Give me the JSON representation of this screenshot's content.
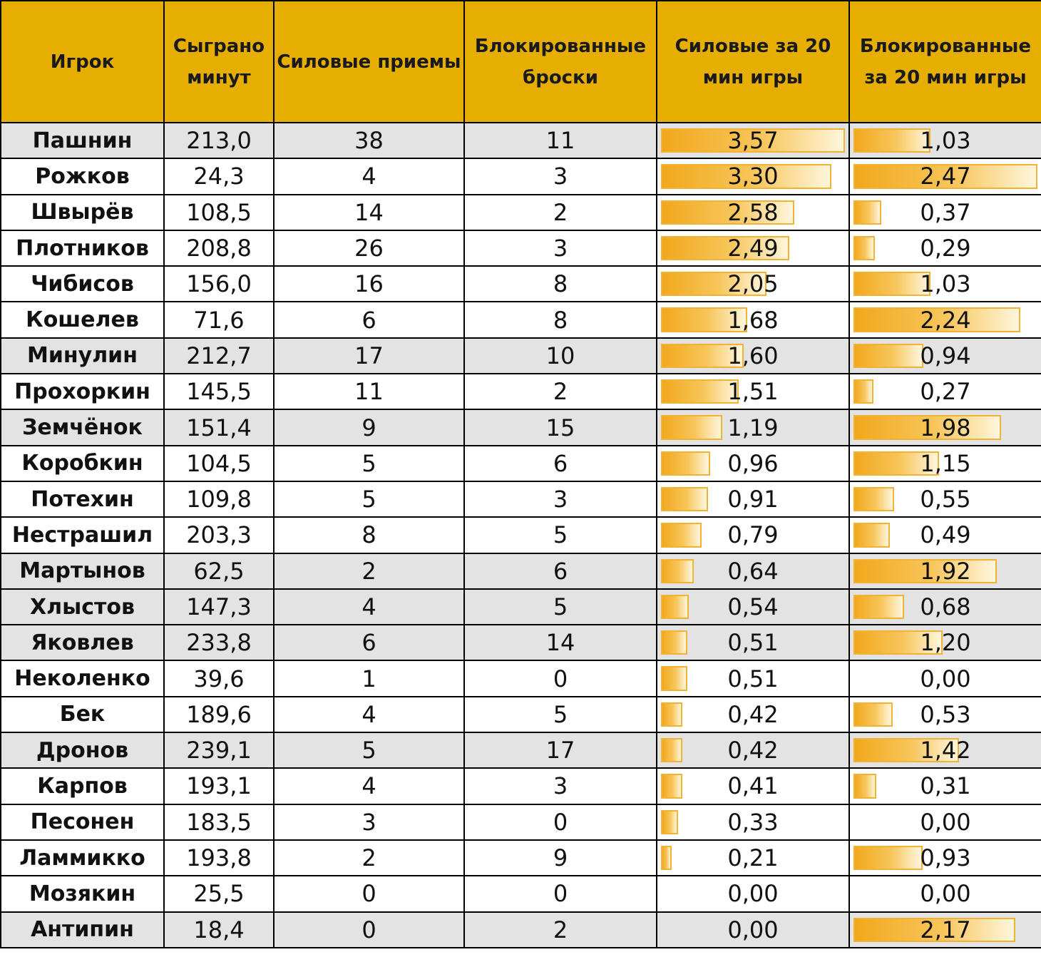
{
  "chart_data": {
    "type": "table",
    "columns": [
      "Игрок",
      "Сыграно минут",
      "Силовые приемы",
      "Блокированные броски",
      "Силовые за 20 мин игры",
      "Блокированные за 20 мин игры"
    ],
    "rows": [
      {
        "player": "Пашнин",
        "minutes": "213,0",
        "hits": "38",
        "blocks": "11",
        "hits_per20": "3,57",
        "blocks_per20": "1,03",
        "hits_per20_value": 3.57,
        "blocks_per20_value": 1.03,
        "shaded": true
      },
      {
        "player": "Рожков",
        "minutes": "24,3",
        "hits": "4",
        "blocks": "3",
        "hits_per20": "3,30",
        "blocks_per20": "2,47",
        "hits_per20_value": 3.3,
        "blocks_per20_value": 2.47,
        "shaded": false
      },
      {
        "player": "Швырёв",
        "minutes": "108,5",
        "hits": "14",
        "blocks": "2",
        "hits_per20": "2,58",
        "blocks_per20": "0,37",
        "hits_per20_value": 2.58,
        "blocks_per20_value": 0.37,
        "shaded": false
      },
      {
        "player": "Плотников",
        "minutes": "208,8",
        "hits": "26",
        "blocks": "3",
        "hits_per20": "2,49",
        "blocks_per20": "0,29",
        "hits_per20_value": 2.49,
        "blocks_per20_value": 0.29,
        "shaded": false
      },
      {
        "player": "Чибисов",
        "minutes": "156,0",
        "hits": "16",
        "blocks": "8",
        "hits_per20": "2,05",
        "blocks_per20": "1,03",
        "hits_per20_value": 2.05,
        "blocks_per20_value": 1.03,
        "shaded": false
      },
      {
        "player": "Кошелев",
        "minutes": "71,6",
        "hits": "6",
        "blocks": "8",
        "hits_per20": "1,68",
        "blocks_per20": "2,24",
        "hits_per20_value": 1.68,
        "blocks_per20_value": 2.24,
        "shaded": false
      },
      {
        "player": "Минулин",
        "minutes": "212,7",
        "hits": "17",
        "blocks": "10",
        "hits_per20": "1,60",
        "blocks_per20": "0,94",
        "hits_per20_value": 1.6,
        "blocks_per20_value": 0.94,
        "shaded": true
      },
      {
        "player": "Прохоркин",
        "minutes": "145,5",
        "hits": "11",
        "blocks": "2",
        "hits_per20": "1,51",
        "blocks_per20": "0,27",
        "hits_per20_value": 1.51,
        "blocks_per20_value": 0.27,
        "shaded": false
      },
      {
        "player": "Земчёнок",
        "minutes": "151,4",
        "hits": "9",
        "blocks": "15",
        "hits_per20": "1,19",
        "blocks_per20": "1,98",
        "hits_per20_value": 1.19,
        "blocks_per20_value": 1.98,
        "shaded": true
      },
      {
        "player": "Коробкин",
        "minutes": "104,5",
        "hits": "5",
        "blocks": "6",
        "hits_per20": "0,96",
        "blocks_per20": "1,15",
        "hits_per20_value": 0.96,
        "blocks_per20_value": 1.15,
        "shaded": false
      },
      {
        "player": "Потехин",
        "minutes": "109,8",
        "hits": "5",
        "blocks": "3",
        "hits_per20": "0,91",
        "blocks_per20": "0,55",
        "hits_per20_value": 0.91,
        "blocks_per20_value": 0.55,
        "shaded": false
      },
      {
        "player": "Нестрашил",
        "minutes": "203,3",
        "hits": "8",
        "blocks": "5",
        "hits_per20": "0,79",
        "blocks_per20": "0,49",
        "hits_per20_value": 0.79,
        "blocks_per20_value": 0.49,
        "shaded": false
      },
      {
        "player": "Мартынов",
        "minutes": "62,5",
        "hits": "2",
        "blocks": "6",
        "hits_per20": "0,64",
        "blocks_per20": "1,92",
        "hits_per20_value": 0.64,
        "blocks_per20_value": 1.92,
        "shaded": true
      },
      {
        "player": "Хлыстов",
        "minutes": "147,3",
        "hits": "4",
        "blocks": "5",
        "hits_per20": "0,54",
        "blocks_per20": "0,68",
        "hits_per20_value": 0.54,
        "blocks_per20_value": 0.68,
        "shaded": true
      },
      {
        "player": "Яковлев",
        "minutes": "233,8",
        "hits": "6",
        "blocks": "14",
        "hits_per20": "0,51",
        "blocks_per20": "1,20",
        "hits_per20_value": 0.51,
        "blocks_per20_value": 1.2,
        "shaded": true
      },
      {
        "player": "Неколенко",
        "minutes": "39,6",
        "hits": "1",
        "blocks": "0",
        "hits_per20": "0,51",
        "blocks_per20": "0,00",
        "hits_per20_value": 0.51,
        "blocks_per20_value": 0.0,
        "shaded": false
      },
      {
        "player": "Бек",
        "minutes": "189,6",
        "hits": "4",
        "blocks": "5",
        "hits_per20": "0,42",
        "blocks_per20": "0,53",
        "hits_per20_value": 0.42,
        "blocks_per20_value": 0.53,
        "shaded": false
      },
      {
        "player": "Дронов",
        "minutes": "239,1",
        "hits": "5",
        "blocks": "17",
        "hits_per20": "0,42",
        "blocks_per20": "1,42",
        "hits_per20_value": 0.42,
        "blocks_per20_value": 1.42,
        "shaded": true
      },
      {
        "player": "Карпов",
        "minutes": "193,1",
        "hits": "4",
        "blocks": "3",
        "hits_per20": "0,41",
        "blocks_per20": "0,31",
        "hits_per20_value": 0.41,
        "blocks_per20_value": 0.31,
        "shaded": false
      },
      {
        "player": "Песонен",
        "minutes": "183,5",
        "hits": "3",
        "blocks": "0",
        "hits_per20": "0,33",
        "blocks_per20": "0,00",
        "hits_per20_value": 0.33,
        "blocks_per20_value": 0.0,
        "shaded": false
      },
      {
        "player": "Ламмикко",
        "minutes": "193,8",
        "hits": "2",
        "blocks": "9",
        "hits_per20": "0,21",
        "blocks_per20": "0,93",
        "hits_per20_value": 0.21,
        "blocks_per20_value": 0.93,
        "shaded": false
      },
      {
        "player": "Мозякин",
        "minutes": "25,5",
        "hits": "0",
        "blocks": "0",
        "hits_per20": "0,00",
        "blocks_per20": "0,00",
        "hits_per20_value": 0.0,
        "blocks_per20_value": 0.0,
        "shaded": false
      },
      {
        "player": "Антипин",
        "minutes": "18,4",
        "hits": "0",
        "blocks": "2",
        "hits_per20": "0,00",
        "blocks_per20": "2,17",
        "hits_per20_value": 0.0,
        "blocks_per20_value": 2.17,
        "shaded": true
      }
    ],
    "hits_per20_max": 3.57,
    "blocks_per20_max": 2.47
  },
  "colors": {
    "header_bg": "#E6AE00",
    "row_shade": "#E3E3E3",
    "bar_fill": "#F2A81D",
    "bar_border": "#F2B233"
  }
}
